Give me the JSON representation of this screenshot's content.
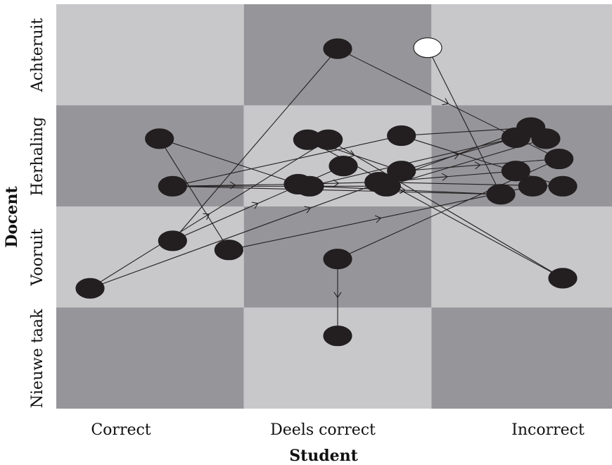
{
  "chart_data": {
    "type": "scatter",
    "x_categories": [
      "Correct",
      "Deels correct",
      "Incorrect"
    ],
    "y_categories": [
      "Nieuwe taak",
      "Vooruit",
      "Herhaling",
      "Achteruit"
    ],
    "xlabel": "Student",
    "ylabel": "Docent",
    "cell_shading": [
      [
        "dark",
        "light",
        "dark"
      ],
      [
        "light",
        "dark",
        "light"
      ],
      [
        "dark",
        "light",
        "dark"
      ],
      [
        "light",
        "dark",
        "light"
      ]
    ],
    "colors": {
      "dark": "#96969a",
      "light": "#c8c8ca",
      "node": "#231f20",
      "line": "#231f20"
    },
    "nodes": [
      {
        "id": "n0",
        "x": 1.98,
        "y": 3.57,
        "filled": false
      },
      {
        "id": "n1",
        "x": 1.5,
        "y": 3.56,
        "filled": true
      },
      {
        "id": "n2",
        "x": 0.55,
        "y": 2.67,
        "filled": true
      },
      {
        "id": "n3",
        "x": 1.34,
        "y": 2.66,
        "filled": true
      },
      {
        "id": "n4",
        "x": 1.45,
        "y": 2.66,
        "filled": true
      },
      {
        "id": "n5",
        "x": 1.84,
        "y": 2.7,
        "filled": true
      },
      {
        "id": "n6",
        "x": 2.53,
        "y": 2.78,
        "filled": true
      },
      {
        "id": "n7",
        "x": 2.45,
        "y": 2.68,
        "filled": true
      },
      {
        "id": "n8",
        "x": 2.61,
        "y": 2.67,
        "filled": true
      },
      {
        "id": "n9",
        "x": 2.68,
        "y": 2.47,
        "filled": true
      },
      {
        "id": "n10",
        "x": 1.53,
        "y": 2.4,
        "filled": true
      },
      {
        "id": "n11",
        "x": 1.84,
        "y": 2.35,
        "filled": true
      },
      {
        "id": "n12",
        "x": 1.72,
        "y": 2.24,
        "filled": true
      },
      {
        "id": "n13",
        "x": 2.45,
        "y": 2.35,
        "filled": true
      },
      {
        "id": "n14",
        "x": 0.62,
        "y": 2.2,
        "filled": true
      },
      {
        "id": "n15",
        "x": 1.29,
        "y": 2.22,
        "filled": true
      },
      {
        "id": "n16",
        "x": 1.35,
        "y": 2.2,
        "filled": true
      },
      {
        "id": "n17",
        "x": 1.76,
        "y": 2.2,
        "filled": true
      },
      {
        "id": "n18",
        "x": 2.54,
        "y": 2.2,
        "filled": true
      },
      {
        "id": "n19",
        "x": 2.7,
        "y": 2.2,
        "filled": true
      },
      {
        "id": "n20",
        "x": 2.37,
        "y": 2.12,
        "filled": true
      },
      {
        "id": "n21",
        "x": 0.62,
        "y": 1.66,
        "filled": true
      },
      {
        "id": "n22",
        "x": 0.92,
        "y": 1.57,
        "filled": true
      },
      {
        "id": "n23",
        "x": 1.5,
        "y": 1.48,
        "filled": true
      },
      {
        "id": "n24",
        "x": 0.18,
        "y": 1.19,
        "filled": true
      },
      {
        "id": "n25",
        "x": 2.7,
        "y": 1.29,
        "filled": true
      },
      {
        "id": "n26",
        "x": 1.5,
        "y": 0.72,
        "filled": true
      }
    ],
    "edges": [
      {
        "from": "n0",
        "to": "n20",
        "arrow": false
      },
      {
        "from": "n1",
        "to": "n21",
        "arrow": false
      },
      {
        "from": "n1",
        "to": "n9",
        "arrow": true
      },
      {
        "from": "n2",
        "to": "n22",
        "arrow": false
      },
      {
        "from": "n2",
        "to": "n15",
        "arrow": false
      },
      {
        "from": "n14",
        "to": "n20",
        "arrow": false
      },
      {
        "from": "n14",
        "to": "n5",
        "arrow": false
      },
      {
        "from": "n14",
        "to": "n15",
        "arrow": true
      },
      {
        "from": "n14",
        "to": "n17",
        "arrow": false
      },
      {
        "from": "n24",
        "to": "n4",
        "arrow": true
      },
      {
        "from": "n24",
        "to": "n6",
        "arrow": true
      },
      {
        "from": "n21",
        "to": "n10",
        "arrow": true
      },
      {
        "from": "n22",
        "to": "n18",
        "arrow": true
      },
      {
        "from": "n23",
        "to": "n9",
        "arrow": false
      },
      {
        "from": "n23",
        "to": "n26",
        "arrow": true
      },
      {
        "from": "n3",
        "to": "n11",
        "arrow": true
      },
      {
        "from": "n3",
        "to": "n25",
        "arrow": false
      },
      {
        "from": "n5",
        "to": "n6",
        "arrow": false
      },
      {
        "from": "n5",
        "to": "n19",
        "arrow": false
      },
      {
        "from": "n11",
        "to": "n7",
        "arrow": true
      },
      {
        "from": "n11",
        "to": "n9",
        "arrow": true
      },
      {
        "from": "n12",
        "to": "n13",
        "arrow": true
      },
      {
        "from": "n12",
        "to": "n19",
        "arrow": false
      },
      {
        "from": "n16",
        "to": "n7",
        "arrow": false
      },
      {
        "from": "n16",
        "to": "n20",
        "arrow": true
      },
      {
        "from": "n4",
        "to": "n25",
        "arrow": false
      },
      {
        "from": "n17",
        "to": "n8",
        "arrow": false
      },
      {
        "from": "n15",
        "to": "n12",
        "arrow": true
      }
    ]
  }
}
